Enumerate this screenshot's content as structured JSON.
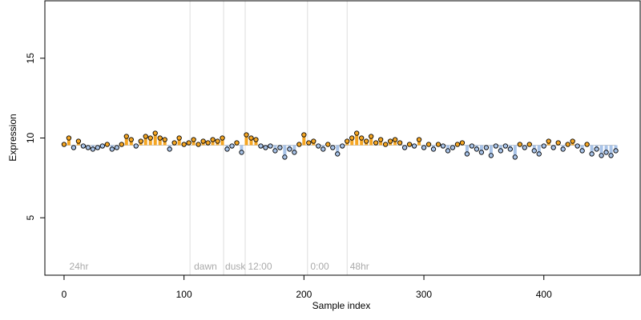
{
  "chart_data": {
    "type": "scatter",
    "title": "",
    "xlabel": "Sample index",
    "ylabel": "Expression",
    "xlim": [
      -16,
      481
    ],
    "ylim": [
      1.4,
      18.6
    ],
    "xticks": [
      0,
      100,
      200,
      300,
      400
    ],
    "yticks": [
      5,
      10,
      15
    ],
    "baseline": 9.55,
    "phase_boundaries": [
      105,
      133,
      151,
      203,
      236
    ],
    "phase_labels": [
      {
        "x": 3,
        "text": "24hr"
      },
      {
        "x": 107,
        "text": "dawn"
      },
      {
        "x": 133,
        "text": "dusk"
      },
      {
        "x": 152,
        "text": "12:00"
      },
      {
        "x": 204,
        "text": "0:00"
      },
      {
        "x": 237,
        "text": "48hr"
      }
    ],
    "colors": {
      "above_baseline": "#f5a623",
      "below_baseline": "#a8c3e8",
      "point_edge": "#000000",
      "boundary": "#dddddd"
    },
    "series": [
      {
        "x": [
          0,
          4,
          8,
          12,
          16,
          20,
          24,
          28,
          32,
          36,
          40,
          44,
          48,
          52,
          56,
          60,
          64,
          68,
          72,
          76,
          80,
          84,
          88,
          92,
          96,
          100,
          104,
          108,
          112,
          116,
          120,
          124,
          128,
          132,
          136,
          140,
          144,
          148,
          152,
          156,
          160,
          164,
          168,
          172,
          176,
          180,
          184,
          188,
          192,
          196,
          200,
          204,
          208,
          212,
          216,
          220,
          224,
          228,
          232,
          236,
          240,
          244,
          248,
          252,
          256,
          260,
          264,
          268,
          272,
          276,
          280,
          284,
          288,
          292,
          296,
          300,
          304,
          308,
          312,
          316,
          320,
          324,
          328,
          332,
          336,
          340,
          344,
          348,
          352,
          356,
          360,
          364,
          368,
          372,
          376,
          380,
          384,
          388,
          392,
          396,
          400,
          404,
          408,
          412,
          416,
          420,
          424,
          428,
          432,
          436,
          440,
          444,
          448,
          452,
          456,
          460
        ],
        "y": [
          9.6,
          10.0,
          9.4,
          9.8,
          9.5,
          9.4,
          9.3,
          9.4,
          9.5,
          9.6,
          9.3,
          9.4,
          9.6,
          10.1,
          9.9,
          9.5,
          9.8,
          10.1,
          10.0,
          10.3,
          10.0,
          9.9,
          9.3,
          9.7,
          10.0,
          9.6,
          9.7,
          9.9,
          9.6,
          9.8,
          9.7,
          9.9,
          9.8,
          10.0,
          9.3,
          9.5,
          9.7,
          9.1,
          10.2,
          10.0,
          9.9,
          9.5,
          9.4,
          9.5,
          9.2,
          9.4,
          8.8,
          9.3,
          9.1,
          9.6,
          10.2,
          9.7,
          9.8,
          9.5,
          9.3,
          9.6,
          9.4,
          9.0,
          9.5,
          9.8,
          10.0,
          10.3,
          10.0,
          9.8,
          10.1,
          9.7,
          9.9,
          9.6,
          9.8,
          9.9,
          9.7,
          9.4,
          9.6,
          9.5,
          9.9,
          9.4,
          9.6,
          9.3,
          9.6,
          9.5,
          9.2,
          9.4,
          9.6,
          9.7,
          9.0,
          9.5,
          9.3,
          9.1,
          9.4,
          8.9,
          9.5,
          9.2,
          9.5,
          9.3,
          8.8,
          9.6,
          9.4,
          9.6,
          9.2,
          9.0,
          9.5,
          9.8,
          9.4,
          9.7,
          9.3,
          9.6,
          9.8,
          9.5,
          9.2,
          9.6,
          9.0,
          9.3,
          8.9,
          9.1,
          8.9,
          9.2
        ]
      }
    ]
  }
}
